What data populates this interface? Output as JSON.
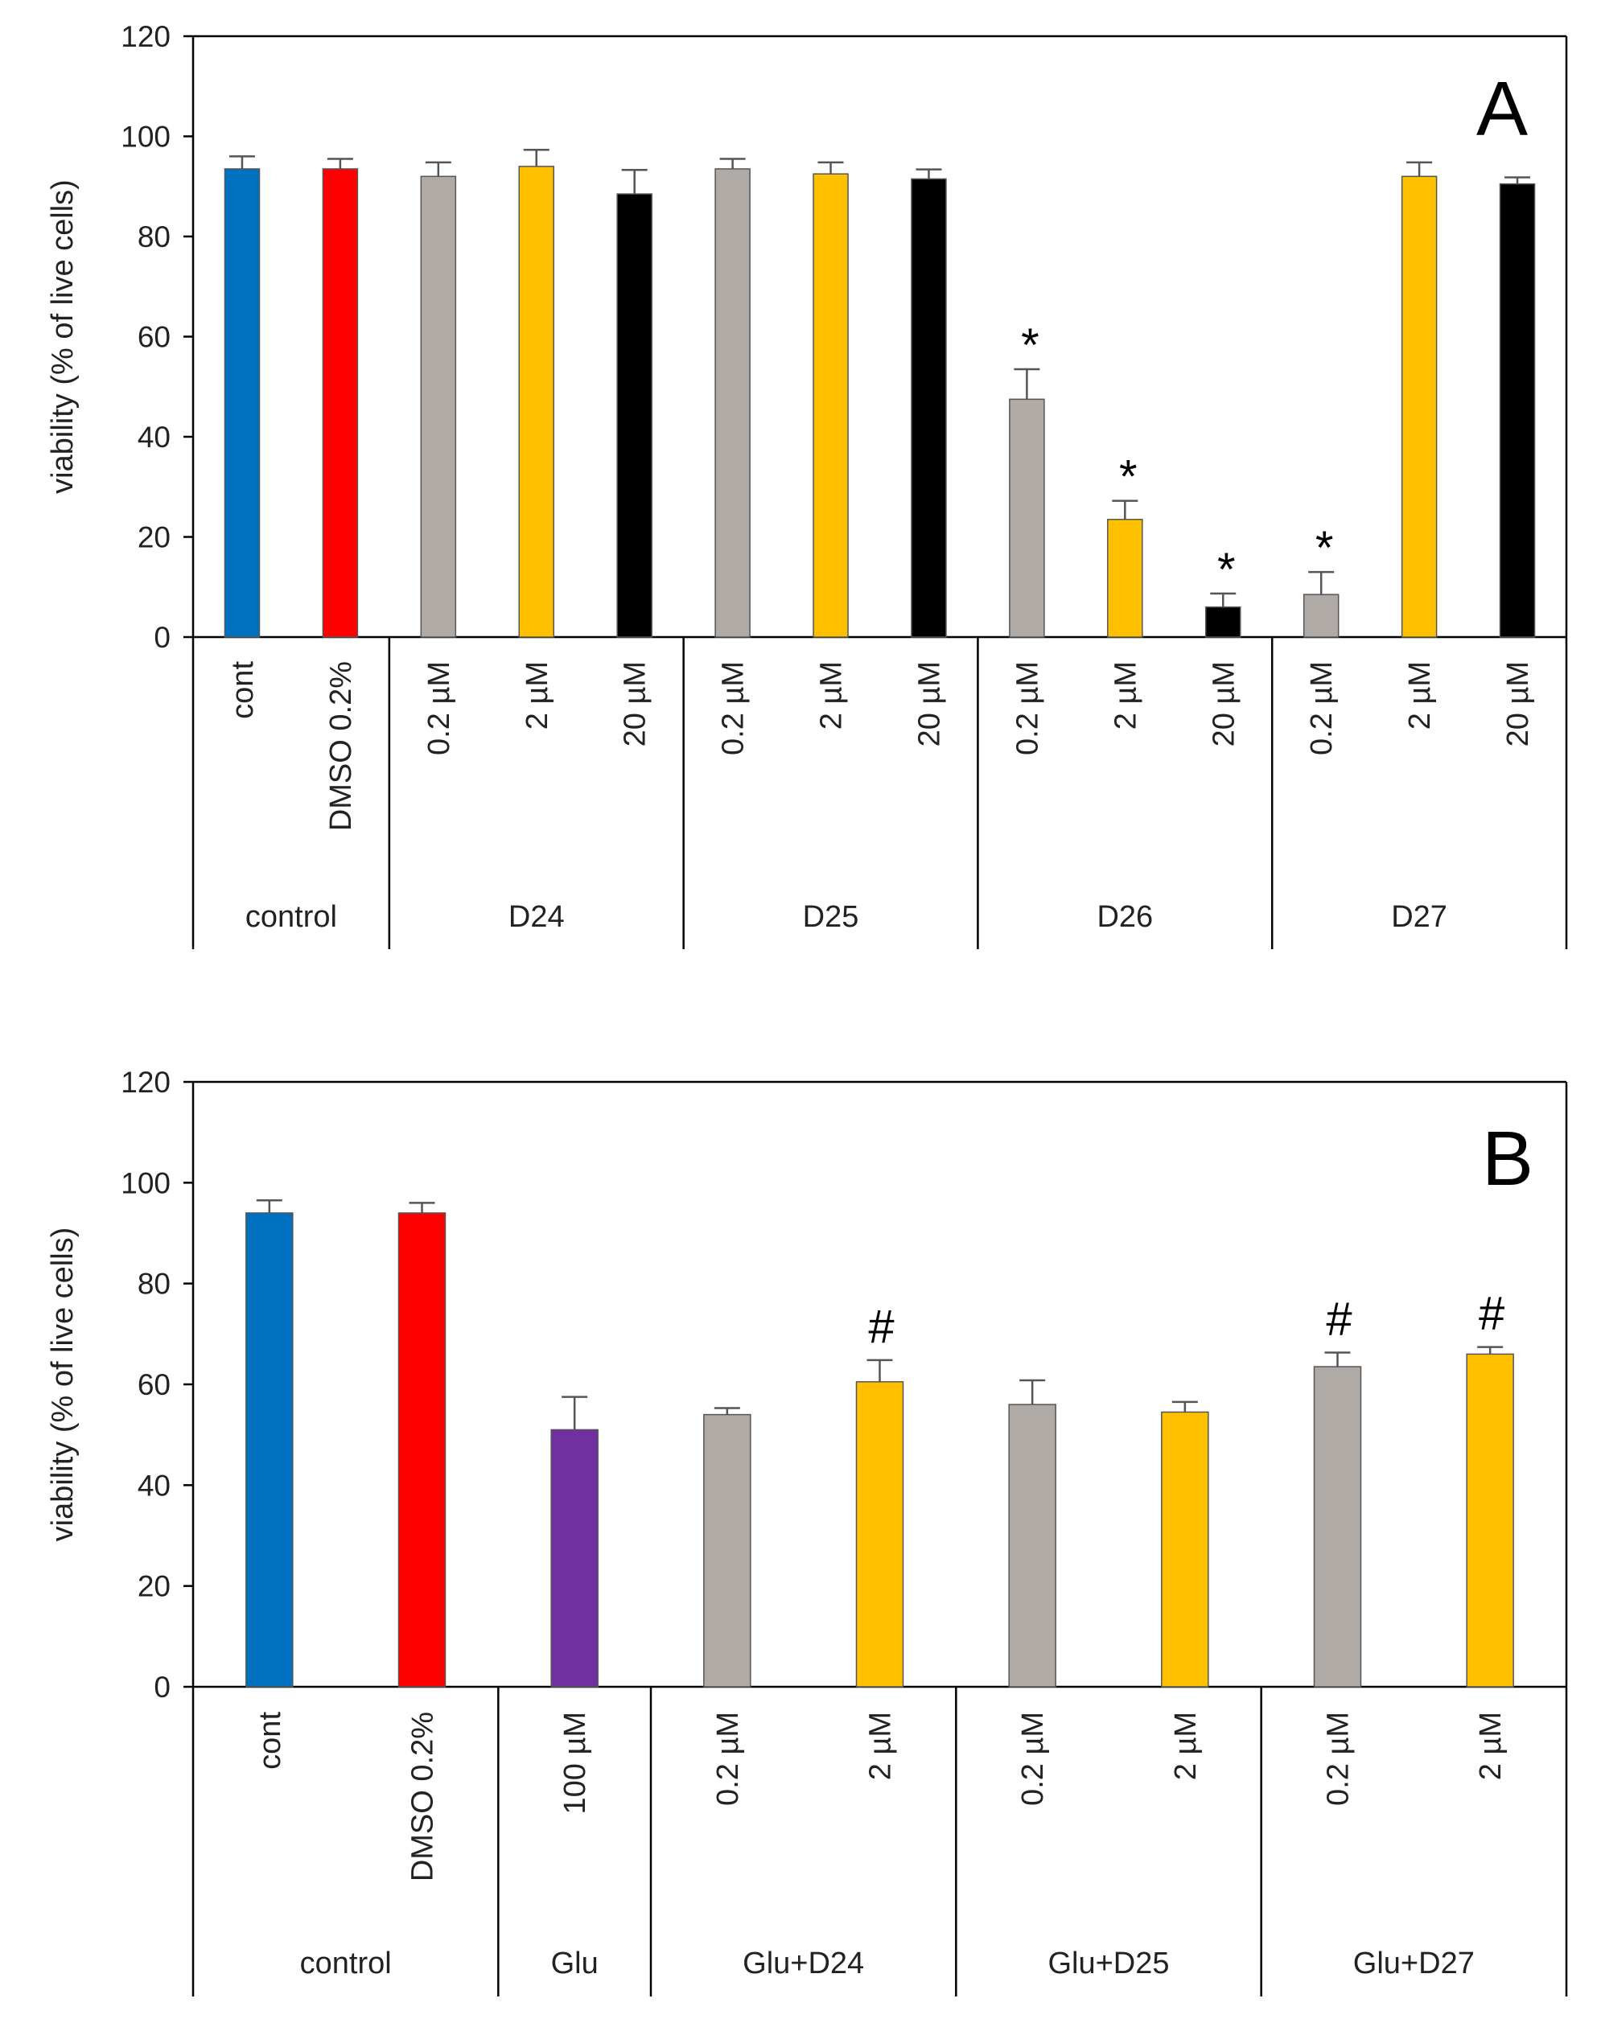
{
  "chart_data": [
    {
      "type": "bar",
      "panel": "A",
      "ylabel": "viability (% of live cells)",
      "ylim": [
        0,
        120
      ],
      "yticks": [
        0,
        20,
        40,
        60,
        80,
        100,
        120
      ],
      "grid": false,
      "legend": "none",
      "categories": [
        {
          "label": "cont",
          "group": "control"
        },
        {
          "label": "DMSO 0.2%",
          "group": "control"
        },
        {
          "label": "0.2 µM",
          "group": "D24"
        },
        {
          "label": "2 µM",
          "group": "D24"
        },
        {
          "label": "20 µM",
          "group": "D24"
        },
        {
          "label": "0.2 µM",
          "group": "D25"
        },
        {
          "label": "2 µM",
          "group": "D25"
        },
        {
          "label": "20 µM",
          "group": "D25"
        },
        {
          "label": "0.2 µM",
          "group": "D26"
        },
        {
          "label": "2 µM",
          "group": "D26"
        },
        {
          "label": "20 µM",
          "group": "D26"
        },
        {
          "label": "0.2 µM",
          "group": "D27"
        },
        {
          "label": "2 µM",
          "group": "D27"
        },
        {
          "label": "20 µM",
          "group": "D27"
        }
      ],
      "groups": [
        "control",
        "D24",
        "D25",
        "D26",
        "D27"
      ],
      "values": [
        93.5,
        93.5,
        92,
        94,
        88.5,
        93.5,
        92.5,
        91.5,
        47.5,
        23.5,
        6,
        8.5,
        92,
        90.5
      ],
      "errors": [
        2.5,
        2,
        2.8,
        3.3,
        4.8,
        2,
        2.3,
        1.9,
        6,
        3.7,
        2.7,
        4.5,
        2.8,
        1.3
      ],
      "colors": [
        "#0070C0",
        "#FF0000",
        "#B0AAA6",
        "#FFC000",
        "#000000",
        "#B0AAA6",
        "#FFC000",
        "#000000",
        "#B0AAA6",
        "#FFC000",
        "#000000",
        "#B0AAA6",
        "#FFC000",
        "#000000"
      ],
      "annotations": [
        "",
        "",
        "",
        "",
        "",
        "",
        "",
        "",
        "*",
        "*",
        "*",
        "*",
        "",
        ""
      ]
    },
    {
      "type": "bar",
      "panel": "B",
      "ylabel": "viability (% of live cells)",
      "ylim": [
        0,
        120
      ],
      "yticks": [
        0,
        20,
        40,
        60,
        80,
        100,
        120
      ],
      "grid": false,
      "legend": "none",
      "categories": [
        {
          "label": "cont",
          "group": "control"
        },
        {
          "label": "DMSO 0.2%",
          "group": "control"
        },
        {
          "label": "100 µM",
          "group": "Glu"
        },
        {
          "label": "0.2 µM",
          "group": "Glu+D24"
        },
        {
          "label": "2 µM",
          "group": "Glu+D24"
        },
        {
          "label": "0.2 µM",
          "group": "Glu+D25"
        },
        {
          "label": "2 µM",
          "group": "Glu+D25"
        },
        {
          "label": "0.2 µM",
          "group": "Glu+D27"
        },
        {
          "label": "2 µM",
          "group": "Glu+D27"
        }
      ],
      "groups": [
        "control",
        "Glu",
        "Glu+D24",
        "Glu+D25",
        "Glu+D27"
      ],
      "values": [
        94,
        94,
        51,
        54,
        60.5,
        56,
        54.5,
        63.5,
        66
      ],
      "errors": [
        2.5,
        2,
        6.5,
        1.3,
        4.3,
        4.8,
        2,
        2.8,
        1.4
      ],
      "colors": [
        "#0070C0",
        "#FF0000",
        "#7030A0",
        "#B0AAA6",
        "#FFC000",
        "#B0AAA6",
        "#FFC000",
        "#B0AAA6",
        "#FFC000"
      ],
      "annotations": [
        "",
        "",
        "",
        "",
        "#",
        "",
        "",
        "#",
        "#"
      ]
    }
  ]
}
